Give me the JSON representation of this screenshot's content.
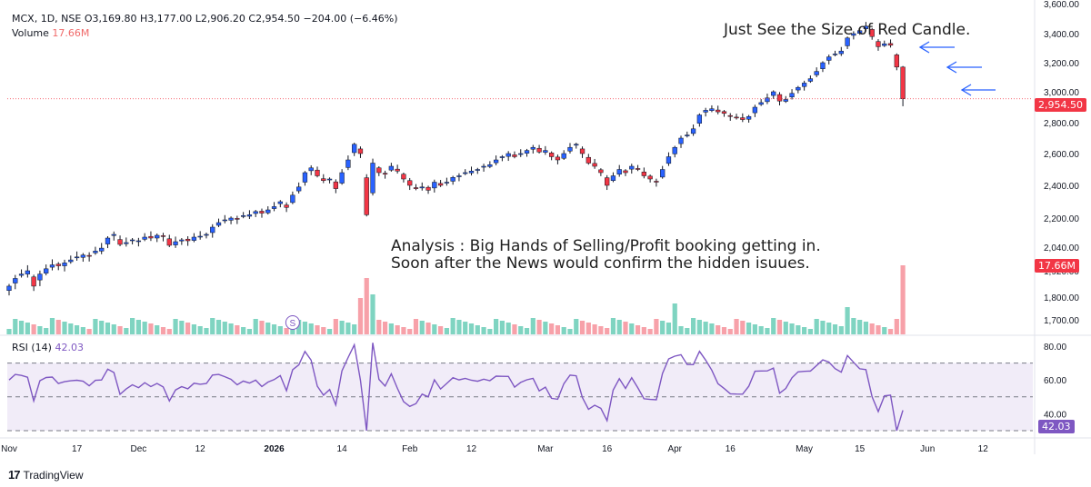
{
  "header": {
    "symbol": "MCX, 1D, NSE",
    "open_label": "O",
    "open": "3,169.80",
    "high_label": "H",
    "high": "3,177.00",
    "low_label": "L",
    "low": "2,906.20",
    "close_label": "C",
    "close": "2,954.50",
    "change": "−204.00 (−6.46%)"
  },
  "volume": {
    "label": "Volume",
    "value": "17.66M"
  },
  "rsi": {
    "label": "RSI (14)",
    "value": "42.03"
  },
  "annotations": {
    "top": "Just See the Size of Red Candle.",
    "analysis_line1": "Analysis : Big Hands of Selling/Profit booking getting in.",
    "analysis_line2": "Soon after the News would confirm the hidden isuues."
  },
  "price_tag": "2,954.50",
  "volume_tag": "17.66M",
  "rsi_tag": "42.03",
  "watermark": "TradingView",
  "event_marker": "S",
  "colors": {
    "up": "#2962ff",
    "down": "#f23645",
    "vol_up": "#7fd4c1",
    "vol_down": "#f7a1a9",
    "rsi": "#7e57c2",
    "arrow": "#2962ff"
  },
  "chart_data": {
    "type": "candlestick",
    "price_axis": {
      "ticks": [
        1700,
        1800,
        1920,
        2040,
        2200,
        2400,
        2600,
        2800,
        3000,
        3200,
        3400,
        3600
      ],
      "tick_labels": [
        "1,700.00",
        "1,800.00",
        "1,920.00",
        "2,040.00",
        "2,200.00",
        "2,400.00",
        "2,600.00",
        "2,800.00",
        "3,000.00",
        "3,200.00",
        "3,400.00",
        "3,600.00"
      ]
    },
    "rsi_axis": {
      "ticks": [
        40,
        60,
        80
      ],
      "tick_labels": [
        "40.00",
        "60.00",
        "80.00"
      ],
      "bands": [
        30,
        50,
        70
      ],
      "range": [
        27,
        87
      ]
    },
    "time_axis": [
      {
        "label": "Nov",
        "index": 0
      },
      {
        "label": "17",
        "index": 11
      },
      {
        "label": "Dec",
        "index": 21
      },
      {
        "label": "12",
        "index": 31
      },
      {
        "label": "2026",
        "index": 43,
        "bold": true
      },
      {
        "label": "14",
        "index": 54
      },
      {
        "label": "Feb",
        "index": 65
      },
      {
        "label": "12",
        "index": 75
      },
      {
        "label": "Mar",
        "index": 87
      },
      {
        "label": "16",
        "index": 97
      },
      {
        "label": "Apr",
        "index": 108
      },
      {
        "label": "16",
        "index": 117
      },
      {
        "label": "May",
        "index": 129
      },
      {
        "label": "15",
        "index": 138
      },
      {
        "label": "Jun",
        "index": 149
      },
      {
        "label": "12",
        "index": 158
      }
    ],
    "closes": [
      1850,
      1885,
      1905,
      1920,
      1850,
      1905,
      1930,
      1950,
      1945,
      1960,
      1975,
      1990,
      2000,
      1995,
      2020,
      2035,
      2090,
      2110,
      2055,
      2065,
      2080,
      2075,
      2095,
      2090,
      2105,
      2100,
      2050,
      2070,
      2080,
      2075,
      2095,
      2100,
      2110,
      2150,
      2175,
      2190,
      2200,
      2195,
      2215,
      2220,
      2240,
      2230,
      2250,
      2270,
      2300,
      2265,
      2340,
      2390,
      2480,
      2510,
      2460,
      2430,
      2440,
      2380,
      2480,
      2560,
      2660,
      2600,
      2220,
      2540,
      2480,
      2470,
      2520,
      2490,
      2440,
      2400,
      2380,
      2390,
      2370,
      2420,
      2400,
      2420,
      2450,
      2460,
      2480,
      2490,
      2500,
      2520,
      2530,
      2560,
      2580,
      2600,
      2580,
      2600,
      2620,
      2640,
      2610,
      2620,
      2580,
      2560,
      2600,
      2640,
      2660,
      2600,
      2540,
      2520,
      2480,
      2400,
      2460,
      2500,
      2480,
      2520,
      2500,
      2460,
      2440,
      2420,
      2500,
      2580,
      2640,
      2700,
      2720,
      2760,
      2850,
      2880,
      2890,
      2870,
      2860,
      2840,
      2830,
      2820,
      2840,
      2900,
      2930,
      2960,
      3000,
      2940,
      2950,
      2990,
      3030,
      3060,
      3090,
      3140,
      3200,
      3240,
      3260,
      3280,
      3370,
      3400,
      3420,
      3450,
      3380,
      3310,
      3330,
      3320,
      3170,
      2955
    ],
    "last_close": 2954.5,
    "last_volume": "17.66M"
  }
}
